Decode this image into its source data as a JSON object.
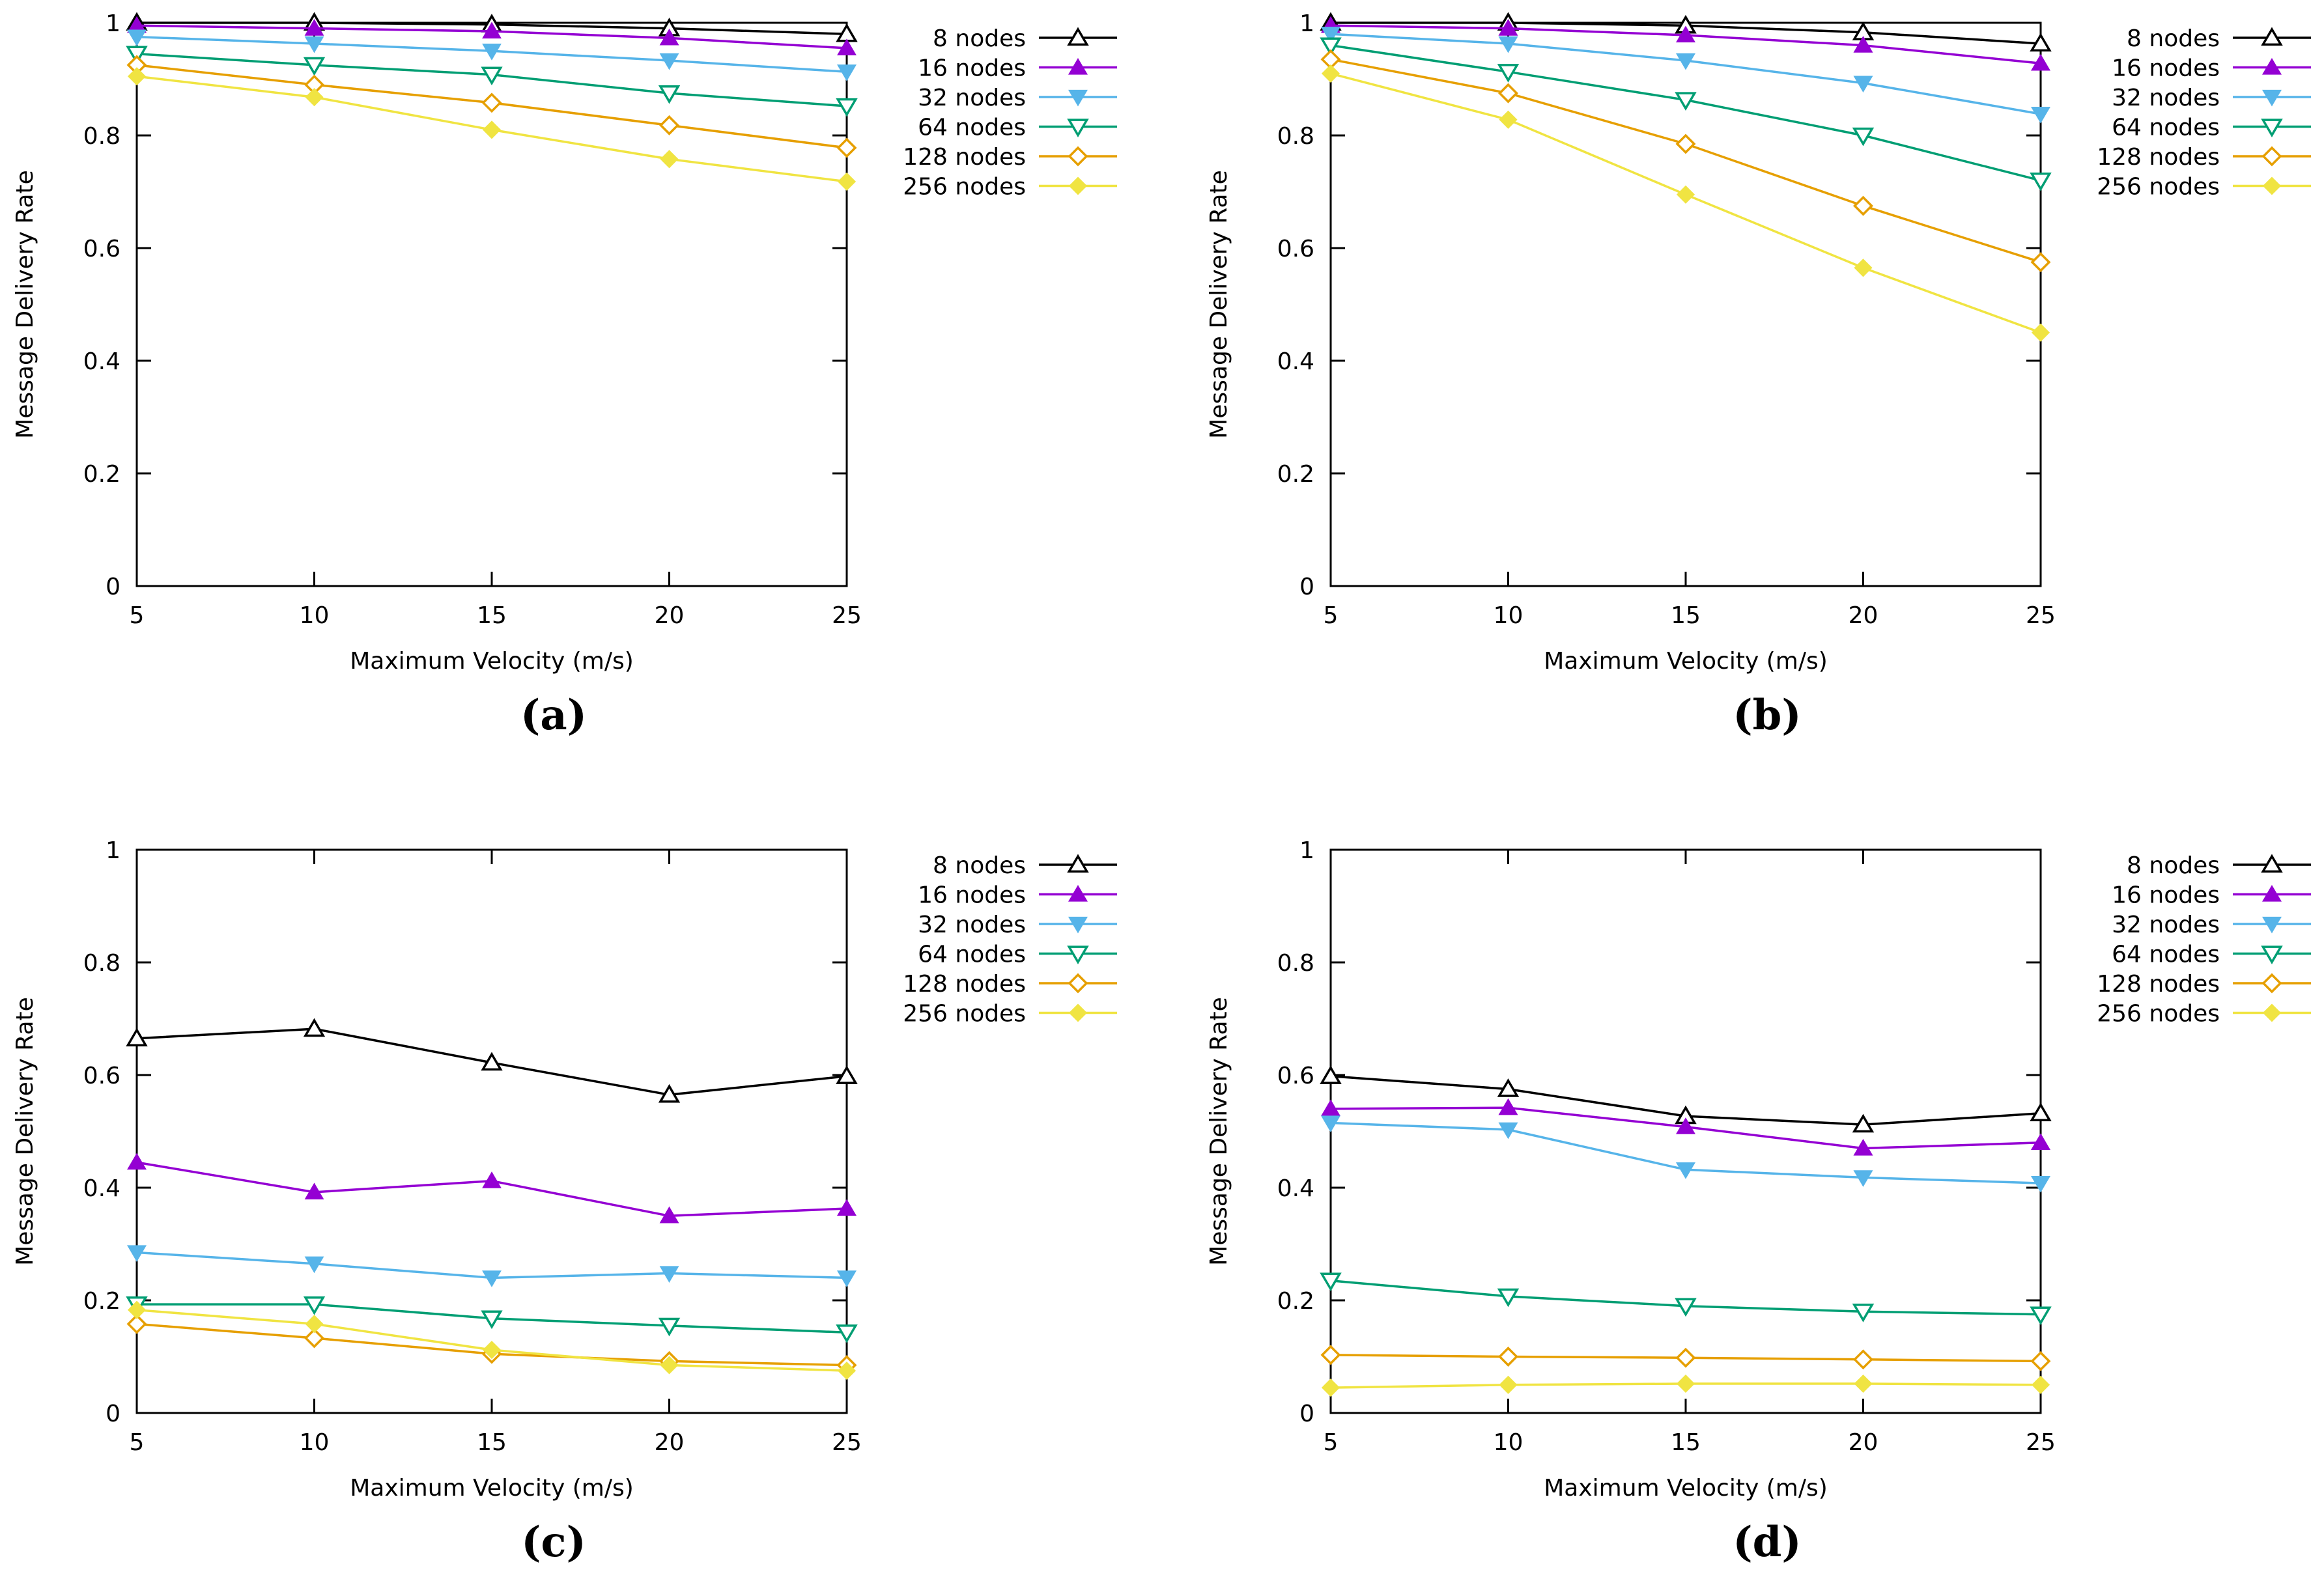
{
  "chart_data": [
    {
      "type": "line",
      "panel": "(a)",
      "xlabel": "Maximum Velocity (m/s)",
      "ylabel": "Message Delivery Rate",
      "x": [
        5,
        10,
        15,
        20,
        25
      ],
      "x_ticks": [
        "5",
        "10",
        "15",
        "20",
        "25"
      ],
      "y_ticks": [
        "0",
        "0.2",
        "0.4",
        "0.6",
        "0.8",
        "1"
      ],
      "xlim": [
        5,
        25
      ],
      "ylim": [
        0,
        1
      ],
      "grid": false,
      "legend_position": "top-right",
      "series": [
        {
          "name": "8 nodes",
          "color": "#000000",
          "marker": "triangle-up-open",
          "values": [
            1.0,
            1.0,
            0.997,
            0.99,
            0.98
          ]
        },
        {
          "name": "16 nodes",
          "color": "#9400d3",
          "marker": "triangle-up-filled",
          "values": [
            0.995,
            0.99,
            0.985,
            0.973,
            0.955
          ]
        },
        {
          "name": "32 nodes",
          "color": "#56b4e9",
          "marker": "triangle-down-filled",
          "values": [
            0.975,
            0.963,
            0.95,
            0.933,
            0.913
          ]
        },
        {
          "name": "64 nodes",
          "color": "#009e73",
          "marker": "triangle-down-open",
          "values": [
            0.945,
            0.925,
            0.908,
            0.875,
            0.852
          ]
        },
        {
          "name": "128 nodes",
          "color": "#e69f00",
          "marker": "diamond-open",
          "values": [
            0.925,
            0.89,
            0.858,
            0.818,
            0.778
          ]
        },
        {
          "name": "256 nodes",
          "color": "#f0e442",
          "marker": "diamond-filled",
          "values": [
            0.905,
            0.868,
            0.81,
            0.758,
            0.718
          ]
        }
      ]
    },
    {
      "type": "line",
      "panel": "(b)",
      "xlabel": "Maximum Velocity (m/s)",
      "ylabel": "Message Delivery Rate",
      "x": [
        5,
        10,
        15,
        20,
        25
      ],
      "x_ticks": [
        "5",
        "10",
        "15",
        "20",
        "25"
      ],
      "y_ticks": [
        "0",
        "0.2",
        "0.4",
        "0.6",
        "0.8",
        "1"
      ],
      "xlim": [
        5,
        25
      ],
      "ylim": [
        0,
        1
      ],
      "grid": false,
      "legend_position": "top-right",
      "series": [
        {
          "name": "8 nodes",
          "color": "#000000",
          "marker": "triangle-up-open",
          "values": [
            1.0,
            1.0,
            0.995,
            0.983,
            0.963
          ]
        },
        {
          "name": "16 nodes",
          "color": "#9400d3",
          "marker": "triangle-up-filled",
          "values": [
            0.995,
            0.99,
            0.978,
            0.96,
            0.928
          ]
        },
        {
          "name": "32 nodes",
          "color": "#56b4e9",
          "marker": "triangle-down-filled",
          "values": [
            0.98,
            0.963,
            0.933,
            0.893,
            0.838
          ]
        },
        {
          "name": "64 nodes",
          "color": "#009e73",
          "marker": "triangle-down-open",
          "values": [
            0.96,
            0.913,
            0.863,
            0.8,
            0.72
          ]
        },
        {
          "name": "128 nodes",
          "color": "#e69f00",
          "marker": "diamond-open",
          "values": [
            0.935,
            0.875,
            0.785,
            0.675,
            0.575
          ]
        },
        {
          "name": "256 nodes",
          "color": "#f0e442",
          "marker": "diamond-filled",
          "values": [
            0.91,
            0.828,
            0.695,
            0.565,
            0.45
          ]
        }
      ]
    },
    {
      "type": "line",
      "panel": "(c)",
      "xlabel": "Maximum Velocity (m/s)",
      "ylabel": "Message Delivery Rate",
      "x": [
        5,
        10,
        15,
        20,
        25
      ],
      "x_ticks": [
        "5",
        "10",
        "15",
        "20",
        "25"
      ],
      "y_ticks": [
        "0",
        "0.2",
        "0.4",
        "0.6",
        "0.8",
        "1"
      ],
      "xlim": [
        5,
        25
      ],
      "ylim": [
        0,
        1
      ],
      "grid": false,
      "legend_position": "top-right",
      "series": [
        {
          "name": "8 nodes",
          "color": "#000000",
          "marker": "triangle-up-open",
          "values": [
            0.665,
            0.682,
            0.622,
            0.565,
            0.598
          ]
        },
        {
          "name": "16 nodes",
          "color": "#9400d3",
          "marker": "triangle-up-filled",
          "values": [
            0.445,
            0.392,
            0.412,
            0.35,
            0.363
          ]
        },
        {
          "name": "32 nodes",
          "color": "#56b4e9",
          "marker": "triangle-down-filled",
          "values": [
            0.285,
            0.265,
            0.24,
            0.248,
            0.24
          ]
        },
        {
          "name": "64 nodes",
          "color": "#009e73",
          "marker": "triangle-down-open",
          "values": [
            0.193,
            0.193,
            0.168,
            0.155,
            0.143
          ]
        },
        {
          "name": "128 nodes",
          "color": "#e69f00",
          "marker": "diamond-open",
          "values": [
            0.158,
            0.133,
            0.105,
            0.092,
            0.085
          ]
        },
        {
          "name": "256 nodes",
          "color": "#f0e442",
          "marker": "diamond-filled",
          "values": [
            0.183,
            0.158,
            0.112,
            0.085,
            0.075
          ]
        }
      ]
    },
    {
      "type": "line",
      "panel": "(d)",
      "xlabel": "Maximum Velocity (m/s)",
      "ylabel": "Message Delivery Rate",
      "x": [
        5,
        10,
        15,
        20,
        25
      ],
      "x_ticks": [
        "5",
        "10",
        "15",
        "20",
        "25"
      ],
      "y_ticks": [
        "0",
        "0.2",
        "0.4",
        "0.6",
        "0.8",
        "1"
      ],
      "xlim": [
        5,
        25
      ],
      "ylim": [
        0,
        1
      ],
      "grid": false,
      "legend_position": "top-right",
      "series": [
        {
          "name": "8 nodes",
          "color": "#000000",
          "marker": "triangle-up-open",
          "values": [
            0.598,
            0.575,
            0.527,
            0.512,
            0.532
          ]
        },
        {
          "name": "16 nodes",
          "color": "#9400d3",
          "marker": "triangle-up-filled",
          "values": [
            0.54,
            0.542,
            0.508,
            0.47,
            0.48
          ]
        },
        {
          "name": "32 nodes",
          "color": "#56b4e9",
          "marker": "triangle-down-filled",
          "values": [
            0.515,
            0.503,
            0.432,
            0.418,
            0.408
          ]
        },
        {
          "name": "64 nodes",
          "color": "#009e73",
          "marker": "triangle-down-open",
          "values": [
            0.235,
            0.207,
            0.19,
            0.18,
            0.175
          ]
        },
        {
          "name": "128 nodes",
          "color": "#e69f00",
          "marker": "diamond-open",
          "values": [
            0.103,
            0.1,
            0.098,
            0.095,
            0.092
          ]
        },
        {
          "name": "256 nodes",
          "color": "#f0e442",
          "marker": "diamond-filled",
          "values": [
            0.045,
            0.05,
            0.052,
            0.052,
            0.05
          ]
        }
      ]
    }
  ]
}
